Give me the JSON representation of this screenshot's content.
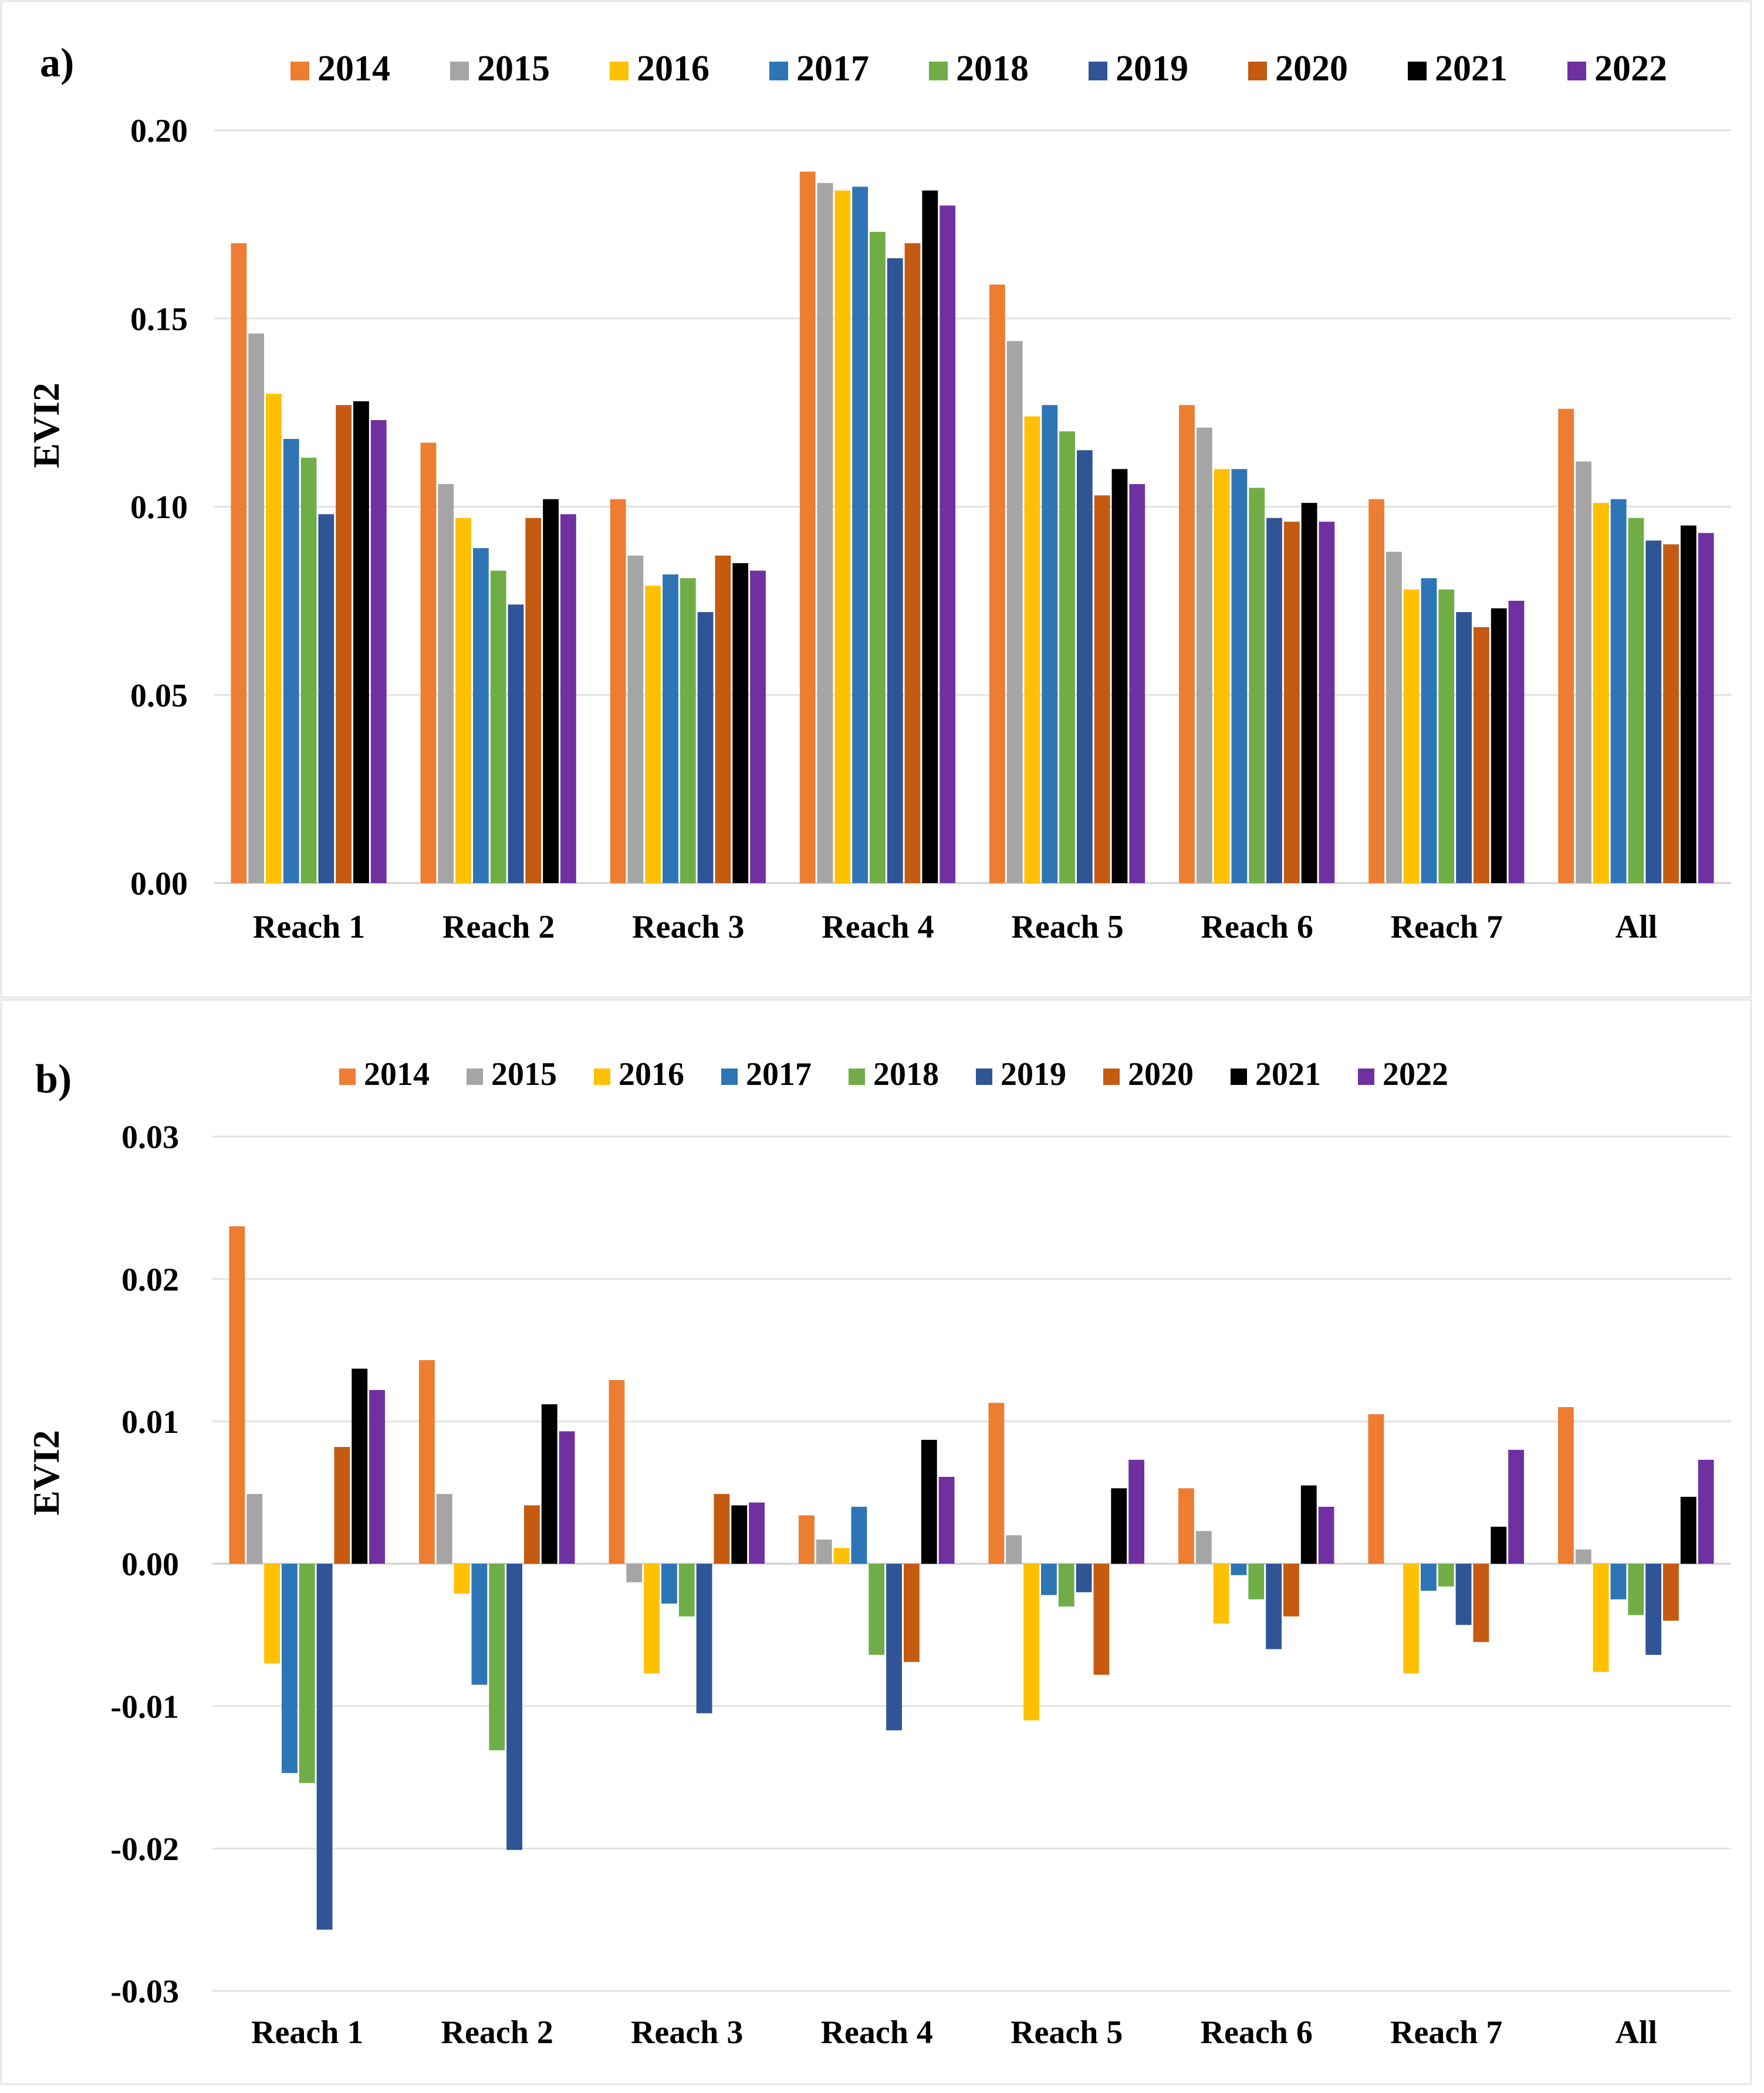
{
  "figure": {
    "panel_labels": [
      "a)",
      "b)"
    ]
  },
  "colors": {
    "2014": "#ED7D31",
    "2015": "#A5A5A5",
    "2016": "#FFC000",
    "2017": "#2E75B6",
    "2018": "#70AD47",
    "2019": "#2F5597",
    "2020": "#C55A11",
    "2021": "#000000",
    "2022": "#7030A0"
  },
  "chart_data": [
    {
      "panel": "a)",
      "type": "bar",
      "ylabel": "EVI2",
      "xlabel": "",
      "ylim": [
        0,
        0.2
      ],
      "yticks": [
        "0.00",
        "0.05",
        "0.10",
        "0.15",
        "0.20"
      ],
      "ytick_values": [
        0,
        0.05,
        0.1,
        0.15,
        0.2
      ],
      "grid": true,
      "legend": "top",
      "categories": [
        "Reach 1",
        "Reach 2",
        "Reach 3",
        "Reach 4",
        "Reach 5",
        "Reach 6",
        "Reach 7",
        "All"
      ],
      "series": [
        {
          "name": "2014",
          "values": [
            0.17,
            0.117,
            0.102,
            0.189,
            0.159,
            0.127,
            0.102,
            0.126
          ]
        },
        {
          "name": "2015",
          "values": [
            0.146,
            0.106,
            0.087,
            0.186,
            0.144,
            0.121,
            0.088,
            0.112
          ]
        },
        {
          "name": "2016",
          "values": [
            0.13,
            0.097,
            0.079,
            0.184,
            0.124,
            0.11,
            0.078,
            0.101
          ]
        },
        {
          "name": "2017",
          "values": [
            0.118,
            0.089,
            0.082,
            0.185,
            0.127,
            0.11,
            0.081,
            0.102
          ]
        },
        {
          "name": "2018",
          "values": [
            0.113,
            0.083,
            0.081,
            0.173,
            0.12,
            0.105,
            0.078,
            0.097
          ]
        },
        {
          "name": "2019",
          "values": [
            0.098,
            0.074,
            0.072,
            0.166,
            0.115,
            0.097,
            0.072,
            0.091
          ]
        },
        {
          "name": "2020",
          "values": [
            0.127,
            0.097,
            0.087,
            0.17,
            0.103,
            0.096,
            0.068,
            0.09
          ]
        },
        {
          "name": "2021",
          "values": [
            0.128,
            0.102,
            0.085,
            0.184,
            0.11,
            0.101,
            0.073,
            0.095
          ]
        },
        {
          "name": "2022",
          "values": [
            0.123,
            0.098,
            0.083,
            0.18,
            0.106,
            0.096,
            0.075,
            0.093
          ]
        }
      ]
    },
    {
      "panel": "b)",
      "type": "bar",
      "ylabel": "EVI2",
      "xlabel": "",
      "ylim": [
        -0.03,
        0.03
      ],
      "yticks": [
        "-0.03",
        "-0.02",
        "-0.01",
        "0.00",
        "0.01",
        "0.02",
        "0.03"
      ],
      "ytick_values": [
        -0.03,
        -0.02,
        -0.01,
        0,
        0.01,
        0.02,
        0.03
      ],
      "grid": true,
      "legend": "top",
      "categories": [
        "Reach 1",
        "Reach 2",
        "Reach 3",
        "Reach 4",
        "Reach 5",
        "Reach 6",
        "Reach 7",
        "All"
      ],
      "series": [
        {
          "name": "2014",
          "values": [
            0.0237,
            0.0143,
            0.0129,
            0.0034,
            0.0113,
            0.0053,
            0.0105,
            0.011
          ]
        },
        {
          "name": "2015",
          "values": [
            0.0049,
            0.0049,
            -0.0013,
            0.0017,
            0.002,
            0.0023,
            0.0,
            0.001
          ]
        },
        {
          "name": "2016",
          "values": [
            -0.007,
            -0.0021,
            -0.0077,
            0.0011,
            -0.011,
            -0.0042,
            -0.0077,
            -0.0076
          ]
        },
        {
          "name": "2017",
          "values": [
            -0.0147,
            -0.0085,
            -0.0028,
            0.004,
            -0.0022,
            -0.0008,
            -0.0019,
            -0.0025
          ]
        },
        {
          "name": "2018",
          "values": [
            -0.0154,
            -0.0131,
            -0.0037,
            -0.0064,
            -0.003,
            -0.0025,
            -0.0016,
            -0.0036
          ]
        },
        {
          "name": "2019",
          "values": [
            -0.0257,
            -0.0201,
            -0.0105,
            -0.0117,
            -0.002,
            -0.006,
            -0.0043,
            -0.0064
          ]
        },
        {
          "name": "2020",
          "values": [
            0.0082,
            0.0041,
            0.0049,
            -0.0069,
            -0.0078,
            -0.0037,
            -0.0055,
            -0.004
          ]
        },
        {
          "name": "2021",
          "values": [
            0.0137,
            0.0112,
            0.0041,
            0.0087,
            0.0053,
            0.0055,
            0.0026,
            0.0047
          ]
        },
        {
          "name": "2022",
          "values": [
            0.0122,
            0.0093,
            0.0043,
            0.0061,
            0.0073,
            0.004,
            0.008,
            0.0073
          ]
        }
      ]
    }
  ]
}
